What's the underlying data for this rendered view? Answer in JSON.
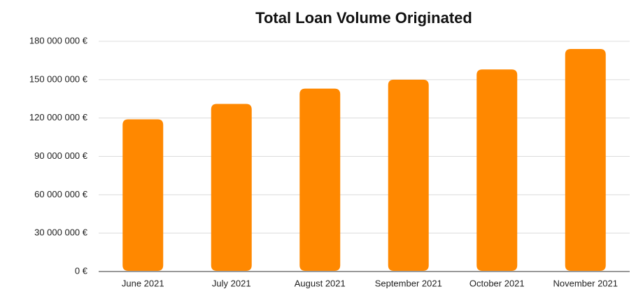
{
  "chart_data": {
    "type": "bar",
    "title": "Total Loan Volume Originated",
    "categories": [
      "June 2021",
      "July 2021",
      "August 2021",
      "September 2021",
      "October 2021",
      "November 2021"
    ],
    "values": [
      119000000,
      131000000,
      143000000,
      150000000,
      158000000,
      174000000
    ],
    "color": "#ff8800",
    "ylim": [
      0,
      180000000
    ],
    "yticks": [
      {
        "value": 0,
        "label": "0 €"
      },
      {
        "value": 30000000,
        "label": "30 000 000 €"
      },
      {
        "value": 60000000,
        "label": "60 000 000 €"
      },
      {
        "value": 90000000,
        "label": "90 000 000 €"
      },
      {
        "value": 120000000,
        "label": "120 000 000 €"
      },
      {
        "value": 150000000,
        "label": "150 000 000 €"
      },
      {
        "value": 180000000,
        "label": "180 000 000 €"
      }
    ],
    "grid": true
  }
}
